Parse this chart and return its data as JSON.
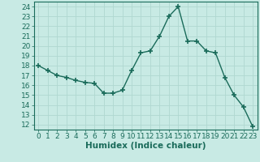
{
  "x": [
    0,
    1,
    2,
    3,
    4,
    5,
    6,
    7,
    8,
    9,
    10,
    11,
    12,
    13,
    14,
    15,
    16,
    17,
    18,
    19,
    20,
    21,
    22,
    23
  ],
  "y": [
    18,
    17.5,
    17,
    16.8,
    16.5,
    16.3,
    16.2,
    15.2,
    15.2,
    15.5,
    17.5,
    19.3,
    19.5,
    21.0,
    23.0,
    24.0,
    20.5,
    20.5,
    19.5,
    19.3,
    16.8,
    15.0,
    13.8,
    11.8
  ],
  "line_color": "#1a6b5a",
  "marker": "+",
  "marker_size": 4,
  "bg_color": "#c8eae4",
  "grid_color": "#b0d8d0",
  "xlabel": "Humidex (Indice chaleur)",
  "xlim": [
    -0.5,
    23.5
  ],
  "ylim": [
    11.5,
    24.5
  ],
  "yticks": [
    12,
    13,
    14,
    15,
    16,
    17,
    18,
    19,
    20,
    21,
    22,
    23,
    24
  ],
  "xticks": [
    0,
    1,
    2,
    3,
    4,
    5,
    6,
    7,
    8,
    9,
    10,
    11,
    12,
    13,
    14,
    15,
    16,
    17,
    18,
    19,
    20,
    21,
    22,
    23
  ],
  "xlabel_fontsize": 7.5,
  "tick_fontsize": 6.5,
  "linewidth": 1.0,
  "marker_size_pts": 5
}
